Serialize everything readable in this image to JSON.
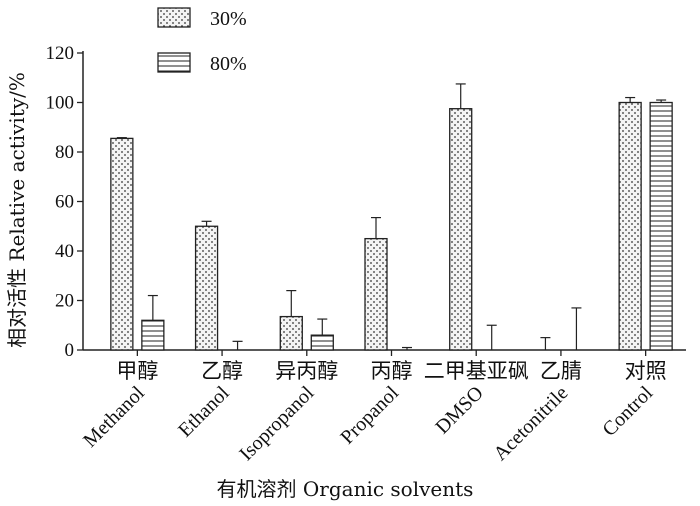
{
  "chart_data": {
    "type": "bar",
    "categories": [
      {
        "cn": "甲醇",
        "en": "Methanol"
      },
      {
        "cn": "乙醇",
        "en": "Ethanol"
      },
      {
        "cn": "异丙醇",
        "en": "Isopropanol"
      },
      {
        "cn": "丙醇",
        "en": "Propanol"
      },
      {
        "cn": "二甲基亚砜",
        "en": "DMSO"
      },
      {
        "cn": "乙腈",
        "en": "Acetonitrile"
      },
      {
        "cn": "对照",
        "en": "Control"
      }
    ],
    "series": [
      {
        "name": "30%",
        "pattern": "dots",
        "values": [
          85.5,
          50,
          13.5,
          45,
          97.5,
          0,
          100
        ],
        "errors": [
          0.3,
          2,
          10.5,
          8.5,
          10,
          5,
          2
        ]
      },
      {
        "name": "80%",
        "pattern": "hlines",
        "values": [
          12,
          0,
          6,
          0,
          0,
          0,
          100
        ],
        "errors": [
          10,
          3.5,
          6.5,
          1,
          10,
          17,
          1
        ]
      }
    ],
    "xlabel": "有机溶剂  Organic solvents",
    "ylabel": "相对活性  Relative activity/%",
    "ylim": [
      0,
      120
    ],
    "yticks": [
      0,
      20,
      40,
      60,
      80,
      100,
      120
    ],
    "legend_position": "top-left",
    "grid": false,
    "colors": {
      "bar_fill": "#f2f2f2",
      "stroke": "#222222"
    }
  }
}
